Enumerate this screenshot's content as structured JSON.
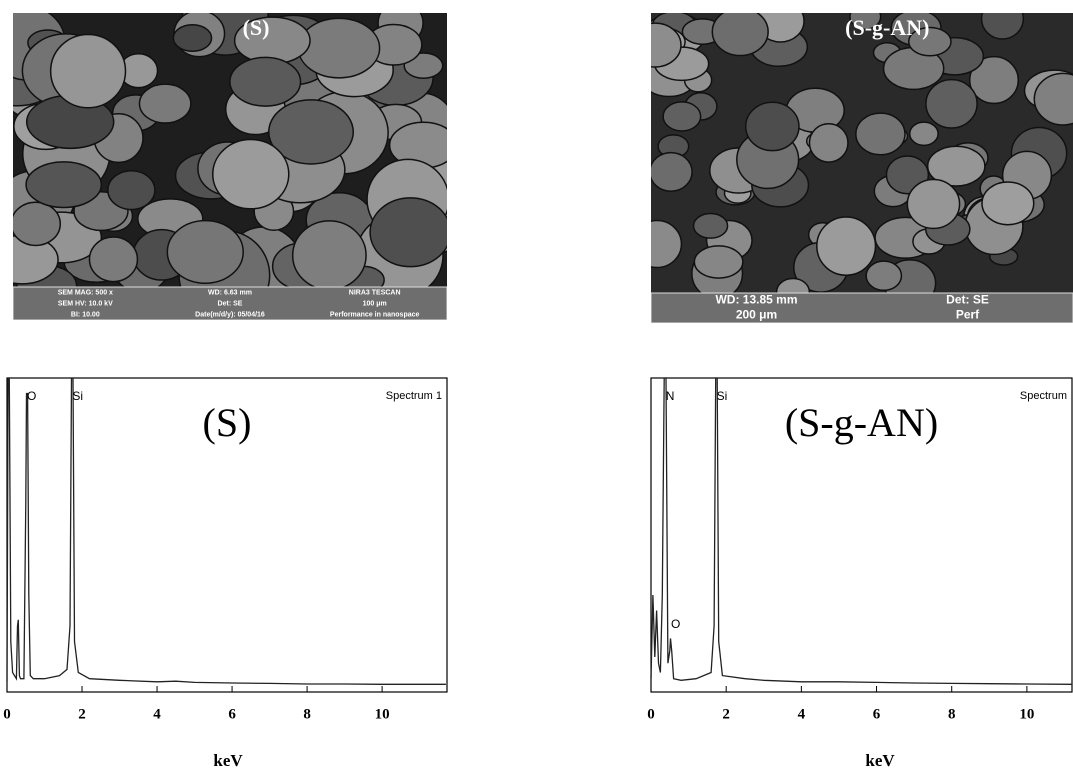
{
  "sem_images": [
    {
      "label": "(S)",
      "info": [
        "SEM MAG: 500 x",
        "WD: 6.63 mm",
        "NIRA3 TESCAN",
        "SEM HV: 10.0 kV",
        "Det: SE",
        "100 μm",
        "BI: 10.00",
        "Date(m/d/y): 05/04/16",
        "Performance in nanospace"
      ]
    },
    {
      "label": "(S-g-AN)",
      "info": [
        "WD: 13.85 mm",
        "Det: SE",
        "200 μm",
        "Perf"
      ]
    }
  ],
  "chart_data": [
    {
      "type": "line",
      "title": "(S)",
      "subtitle": "Spectrum 1",
      "x_label": "keV",
      "color": "#222222",
      "annotations": [
        {
          "text": "O",
          "x": 0.55
        },
        {
          "text": "Si",
          "x": 1.78
        }
      ],
      "x": [
        0,
        0.03,
        0.06,
        0.1,
        0.15,
        0.2,
        0.25,
        0.28,
        0.3,
        0.33,
        0.36,
        0.45,
        0.5,
        0.52,
        0.55,
        0.58,
        0.62,
        0.7,
        1.0,
        1.4,
        1.6,
        1.68,
        1.72,
        1.76,
        1.8,
        1.9,
        2.2,
        3,
        4,
        4.5,
        5,
        6,
        7,
        8,
        9,
        10,
        11,
        11.7
      ],
      "values": [
        2,
        100,
        100,
        15,
        5,
        4,
        3,
        20,
        22,
        4,
        3,
        3,
        60,
        95,
        95,
        30,
        4,
        3,
        3,
        4,
        6,
        20,
        100,
        100,
        15,
        5,
        3,
        2.5,
        2,
        2.2,
        1.8,
        1.6,
        1.5,
        1.3,
        1.3,
        1.2,
        1.2,
        1.2
      ],
      "xlim": [
        0,
        11.73
      ],
      "ylim": [
        0,
        100
      ],
      "xticks": [
        0,
        2,
        4,
        6,
        8,
        10
      ]
    },
    {
      "type": "line",
      "title": "(S-g-AN)",
      "subtitle": "Spectrum",
      "x_label": "keV",
      "color": "#222222",
      "annotations": [
        {
          "text": "N",
          "x": 0.4
        },
        {
          "text": "Si",
          "x": 1.78
        },
        {
          "text": "O",
          "x": 0.55
        }
      ],
      "x": [
        0,
        0.05,
        0.1,
        0.15,
        0.2,
        0.25,
        0.3,
        0.35,
        0.4,
        0.45,
        0.5,
        0.52,
        0.55,
        0.6,
        0.8,
        1.2,
        1.6,
        1.68,
        1.72,
        1.76,
        1.8,
        1.9,
        2.5,
        3,
        4,
        5,
        6,
        7,
        8,
        9,
        10,
        11.2
      ],
      "values": [
        3,
        30,
        10,
        25,
        8,
        5,
        30,
        100,
        100,
        8,
        12,
        16,
        12,
        3,
        2.5,
        3,
        5,
        20,
        100,
        100,
        15,
        4,
        3,
        2.5,
        2,
        2,
        1.8,
        1.6,
        1.5,
        1.4,
        1.3,
        1.2
      ],
      "xlim": [
        0,
        11.2
      ],
      "ylim": [
        0,
        100
      ],
      "xticks": [
        0,
        2,
        4,
        6,
        8,
        10
      ]
    }
  ]
}
